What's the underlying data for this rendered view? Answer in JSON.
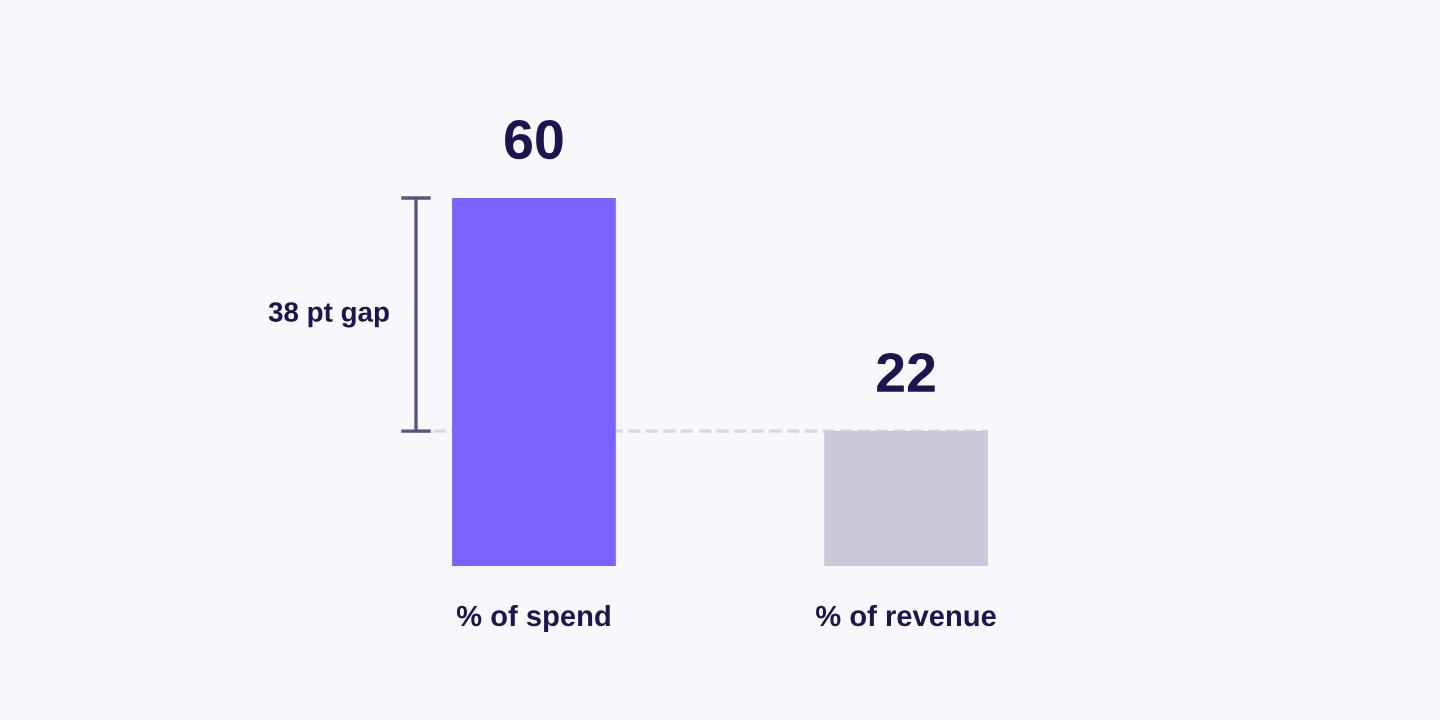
{
  "chart_data": {
    "type": "bar",
    "categories": [
      "% of spend",
      "% of revenue"
    ],
    "values": [
      60,
      22
    ],
    "colors": [
      "#7b61ff",
      "#cbc8da"
    ],
    "data_labels": true,
    "annotations": [
      "38 pt gap"
    ],
    "ref_lines": [
      {
        "axis": "y",
        "value": 22,
        "color": "#d9d7e6",
        "line_style": "dashed"
      }
    ]
  }
}
